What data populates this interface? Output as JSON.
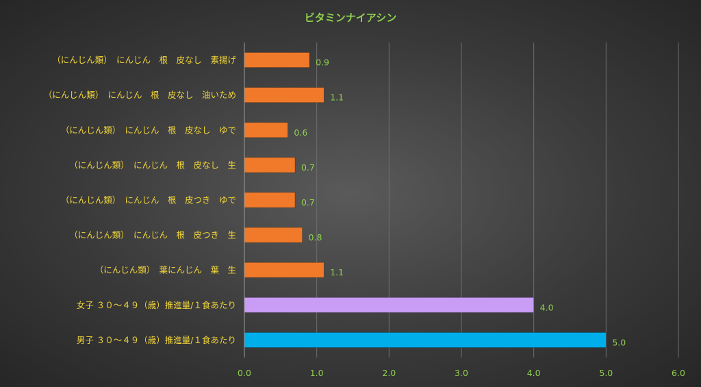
{
  "chart_data": {
    "type": "bar",
    "orientation": "horizontal",
    "title": "ビタミンナイアシン",
    "categories": [
      "（にんじん類）　にんじん　根　皮なし　素揚げ",
      "（にんじん類）　にんじん　根　皮なし　油いため",
      "（にんじん類）　にんじん　根　皮なし　ゆで",
      "（にんじん類）　にんじん　根　皮なし　生",
      "（にんじん類）　にんじん　根　皮つき　ゆで",
      "（にんじん類）　にんじん　根　皮つき　生",
      "（にんじん類）　葉にんじん　葉　生",
      "女子 ３０～４９（歳）推進量/１食あたり",
      "男子 ３０～４９（歳）推進量/１食あたり"
    ],
    "values": [
      0.9,
      1.1,
      0.6,
      0.7,
      0.7,
      0.8,
      1.1,
      4.0,
      5.0
    ],
    "data_labels": [
      "0.9",
      "1.1",
      "0.6",
      "0.7",
      "0.7",
      "0.8",
      "1.1",
      "4.0",
      "5.0"
    ],
    "bar_colors": [
      "#f07a2a",
      "#f07a2a",
      "#f07a2a",
      "#f07a2a",
      "#f07a2a",
      "#f07a2a",
      "#f07a2a",
      "#c99cf5",
      "#00aeea"
    ],
    "xlim": [
      0,
      6
    ],
    "xticks": [
      "0.0",
      "1.0",
      "2.0",
      "3.0",
      "4.0",
      "5.0",
      "6.0"
    ],
    "grid": true,
    "legend": "none"
  }
}
